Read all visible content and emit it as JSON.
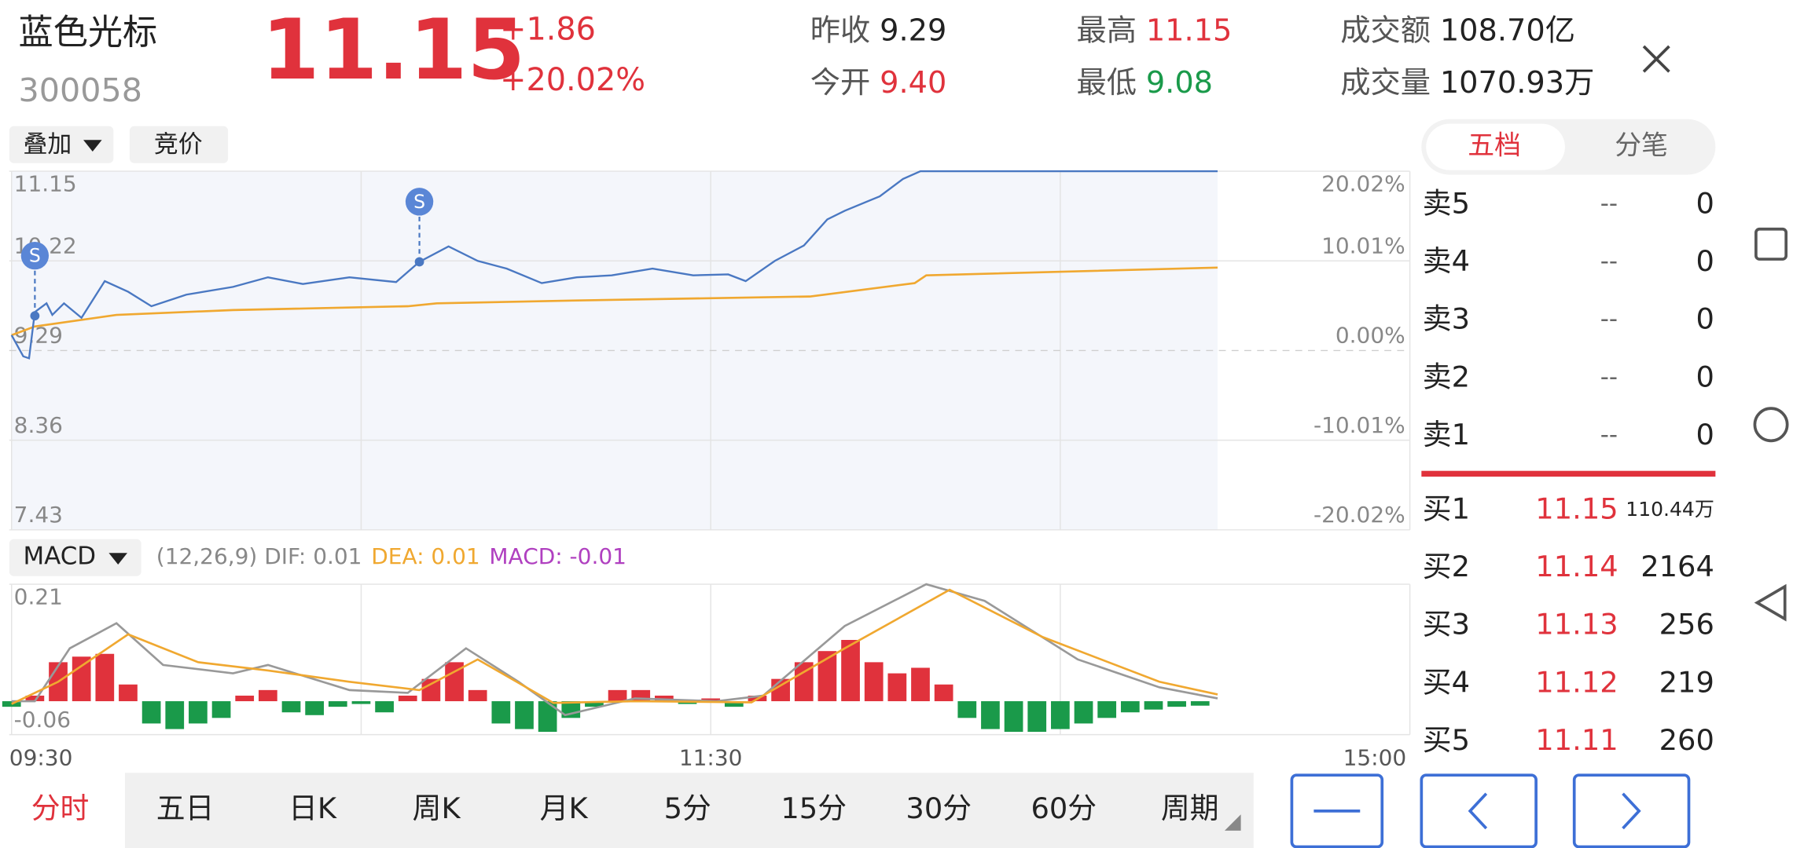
{
  "header": {
    "name": "蓝色光标",
    "code": "300058",
    "price": "11.15",
    "change": "+1.86",
    "change_pct": "+20.02%",
    "stats": [
      {
        "label": "昨收",
        "value": "9.29",
        "color": "#222222"
      },
      {
        "label": "今开",
        "value": "9.40",
        "color": "#e0323c"
      },
      {
        "label": "最高",
        "value": "11.15",
        "color": "#e0323c"
      },
      {
        "label": "最低",
        "value": "9.08",
        "color": "#1a9a4a"
      },
      {
        "label": "成交额",
        "value": "108.70亿",
        "color": "#222222"
      },
      {
        "label": "成交量",
        "value": "1070.93万",
        "color": "#222222"
      }
    ]
  },
  "toolbar": [
    "叠加",
    "竞价"
  ],
  "intraday": {
    "type": "line",
    "xlim": [
      0,
      240
    ],
    "ylim": [
      7.43,
      11.15
    ],
    "yticks": [
      11.15,
      10.22,
      9.29,
      8.36,
      7.43
    ],
    "y2lim": [
      -20.02,
      20.02
    ],
    "y2ticks": [
      {
        "value": 20.02,
        "label": "20.02%"
      },
      {
        "value": 10.01,
        "label": "10.01%"
      },
      {
        "value": 0,
        "label": "0.00%"
      },
      {
        "value": -10.01,
        "label": "-10.01%"
      },
      {
        "value": -20.02,
        "label": "-20.02%"
      }
    ],
    "xticks": [
      {
        "value": 0,
        "label": "09:30"
      },
      {
        "value": 60,
        "label": null
      },
      {
        "value": 120,
        "label": "11:30"
      },
      {
        "value": 180,
        "label": null
      },
      {
        "value": 240,
        "label": "15:00"
      }
    ],
    "price": {
      "color": "#4a78c2",
      "x": [
        0,
        2,
        3,
        4,
        6,
        7,
        9,
        12,
        16,
        20,
        24,
        30,
        38,
        44,
        50,
        58,
        66,
        70,
        75,
        80,
        85,
        91,
        97,
        103,
        110,
        117,
        123,
        126,
        131,
        136,
        140,
        143,
        149,
        153,
        156,
        207
      ],
      "values": [
        9.45,
        9.23,
        9.21,
        9.69,
        9.78,
        9.66,
        9.78,
        9.63,
        10.01,
        9.9,
        9.75,
        9.87,
        9.95,
        10.05,
        9.98,
        10.05,
        10.0,
        10.21,
        10.37,
        10.22,
        10.14,
        9.99,
        10.05,
        10.07,
        10.14,
        10.07,
        10.08,
        10.01,
        10.22,
        10.38,
        10.65,
        10.74,
        10.89,
        11.07,
        11.15,
        11.15
      ]
    },
    "average": {
      "color": "#f0a830",
      "x": [
        0,
        4,
        18,
        38,
        68,
        73,
        97,
        137,
        155,
        157,
        207
      ],
      "values": [
        9.45,
        9.54,
        9.66,
        9.71,
        9.75,
        9.78,
        9.81,
        9.85,
        9.99,
        10.07,
        10.15
      ]
    },
    "markers": [
      {
        "label": "S",
        "x": 4,
        "value": 9.65
      },
      {
        "label": "S",
        "x": 70,
        "value": 10.21
      }
    ]
  },
  "macd": {
    "type": "bar",
    "selector": "MACD",
    "params": "(12,26,9) DIF: 0.01",
    "dea_label": "DEA: 0.01",
    "macd_label": "MACD: -0.01",
    "ylim": [
      -0.06,
      0.21
    ],
    "yticks": [
      0.21,
      -0.06
    ],
    "up_color": "#e0323c",
    "down_color": "#1a9a4a",
    "bars": {
      "x": [
        0,
        4,
        8,
        12,
        16,
        20,
        24,
        28,
        32,
        36,
        40,
        44,
        48,
        52,
        56,
        60,
        64,
        68,
        72,
        76,
        80,
        84,
        88,
        92,
        96,
        100,
        104,
        108,
        112,
        116,
        120,
        124,
        128,
        132,
        136,
        140,
        144,
        148,
        152,
        156,
        160,
        164,
        168,
        172,
        176,
        180,
        184,
        188,
        192,
        196,
        200,
        204
      ],
      "values": [
        -0.01,
        0.01,
        0.07,
        0.08,
        0.085,
        0.03,
        -0.04,
        -0.05,
        -0.04,
        -0.03,
        0.01,
        0.02,
        -0.02,
        -0.025,
        -0.01,
        -0.005,
        -0.02,
        0.01,
        0.04,
        0.07,
        0.02,
        -0.04,
        -0.05,
        -0.055,
        -0.03,
        -0.01,
        0.02,
        0.02,
        0.01,
        -0.005,
        0.005,
        -0.01,
        0.01,
        0.04,
        0.07,
        0.09,
        0.11,
        0.07,
        0.05,
        0.06,
        0.03,
        -0.03,
        -0.05,
        -0.055,
        -0.055,
        -0.05,
        -0.04,
        -0.03,
        -0.02,
        -0.015,
        -0.01,
        -0.008
      ]
    },
    "dif": {
      "color": "#999999",
      "x": [
        0,
        4,
        10,
        18,
        26,
        38,
        44,
        58,
        68,
        78,
        87,
        95,
        107,
        121,
        129,
        143,
        157,
        167,
        183,
        197,
        207
      ],
      "values": [
        0,
        0,
        0.095,
        0.14,
        0.065,
        0.05,
        0.065,
        0.02,
        0.015,
        0.095,
        0.035,
        -0.025,
        0.005,
        0,
        0.01,
        0.135,
        0.21,
        0.18,
        0.075,
        0.025,
        0.005
      ]
    },
    "dea": {
      "color": "#f0a830",
      "x": [
        0,
        8,
        20,
        32,
        44,
        58,
        70,
        80,
        93,
        107,
        127,
        143,
        161,
        177,
        197,
        207
      ],
      "values": [
        -0.005,
        0.035,
        0.12,
        0.07,
        0.055,
        0.035,
        0.02,
        0.075,
        -0.003,
        0,
        -0.002,
        0.095,
        0.2,
        0.115,
        0.035,
        0.012
      ]
    }
  },
  "periods": [
    "分时",
    "五日",
    "日K",
    "周K",
    "月K",
    "5分",
    "15分",
    "30分",
    "60分",
    "周期"
  ],
  "active_period": 0,
  "order_book": {
    "tabs": [
      "五档",
      "分笔"
    ],
    "asks": [
      [
        "卖5",
        "--",
        "0"
      ],
      [
        "卖4",
        "--",
        "0"
      ],
      [
        "卖3",
        "--",
        "0"
      ],
      [
        "卖2",
        "--",
        "0"
      ],
      [
        "卖1",
        "--",
        "0"
      ]
    ],
    "bids": [
      [
        "买1",
        "11.15",
        "110.44万"
      ],
      [
        "买2",
        "11.14",
        "2164"
      ],
      [
        "买3",
        "11.13",
        "256"
      ],
      [
        "买4",
        "11.12",
        "219"
      ],
      [
        "买5",
        "11.11",
        "260"
      ]
    ]
  }
}
